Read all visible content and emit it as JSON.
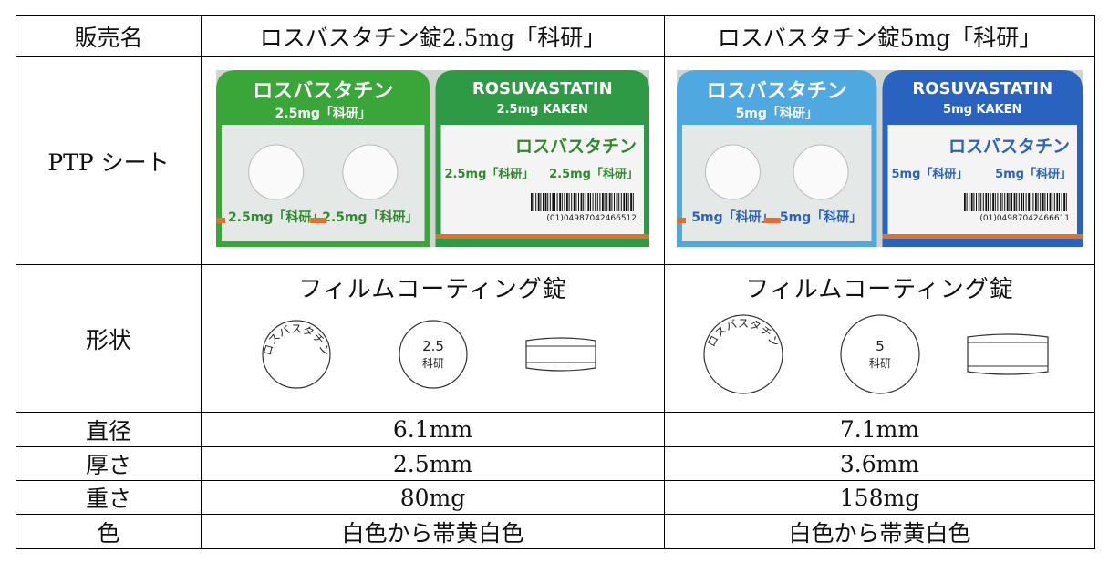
{
  "table": {
    "header": [
      "販売名",
      "ロスバスタチン錠2.5mg「科研」",
      "ロスバスタチン錠5mg「科研」"
    ],
    "rows": [
      {
        "label": "PTP シート"
      },
      {
        "label": "形状",
        "cells": [
          "フィルムコーティング錠",
          "フィルムコーティング錠"
        ]
      },
      {
        "label": "直径",
        "cells": [
          "6.1mm",
          "7.1mm"
        ]
      },
      {
        "label": "厚さ",
        "cells": [
          "2.5mm",
          "3.6mm"
        ]
      },
      {
        "label": "重さ",
        "cells": [
          "80mg",
          "158mg"
        ]
      },
      {
        "label": "色",
        "cells": [
          "白色から帯黄白色",
          "白色から帯黄白色"
        ]
      }
    ],
    "ptp": [
      {
        "jp": "ロスバスタチン",
        "dose_jp": "2.5mg「科研」",
        "en": "ROSUVASTATIN",
        "dose_en": "2.5mg KAKEN",
        "code": "(01)04987042466512"
      },
      {
        "jp": "ロスバスタチン",
        "dose_jp": "5mg「科研」",
        "en": "ROSUVASTATIN",
        "dose_en": "5mg KAKEN",
        "code": "(01)04987042466611"
      }
    ],
    "tablets": [
      {
        "curve": "ロスバスタチン",
        "dose": "2.5",
        "maker": "科研"
      },
      {
        "curve": "ロスバスタチン",
        "dose": "5",
        "maker": "科研"
      }
    ]
  }
}
